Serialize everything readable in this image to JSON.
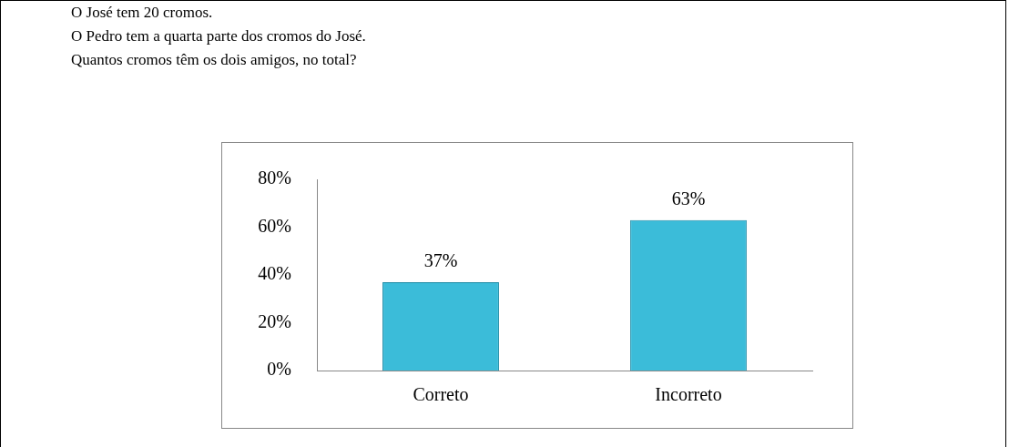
{
  "chart_data": {
    "type": "bar",
    "annotations": [
      "O José tem 20 cromos.",
      "O Pedro tem a quarta parte dos cromos do José.",
      "Quantos cromos têm os dois amigos, no total?"
    ],
    "categories": [
      "Correto",
      "Incorreto"
    ],
    "values": [
      37,
      63
    ],
    "value_labels": [
      "37%",
      "63%"
    ],
    "color": "#3bbcd9",
    "ylim": [
      0,
      80
    ],
    "yticks": [
      {
        "value": 0,
        "label": "0%"
      },
      {
        "value": 20,
        "label": "20%"
      },
      {
        "value": 40,
        "label": "40%"
      },
      {
        "value": 60,
        "label": "60%"
      },
      {
        "value": 80,
        "label": "80%"
      }
    ],
    "grid": false,
    "legend": false
  }
}
